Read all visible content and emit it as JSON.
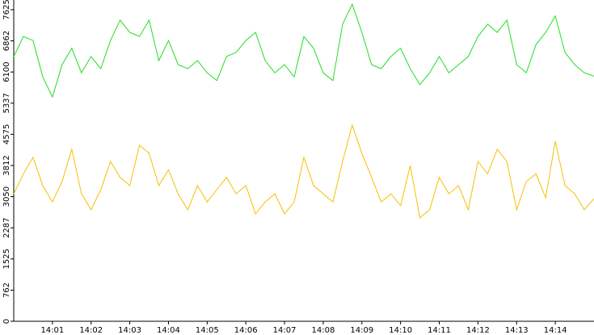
{
  "chart_data": {
    "type": "line",
    "x": [
      0,
      15,
      30,
      45,
      60,
      75,
      90,
      105,
      120,
      135,
      150,
      165,
      180,
      195,
      210,
      225,
      240,
      255,
      270,
      285,
      300,
      315,
      330,
      345,
      360,
      375,
      390,
      405,
      420,
      435,
      450,
      465,
      480,
      495,
      510,
      525,
      540,
      555,
      570,
      585,
      600,
      615,
      630,
      645,
      660,
      675,
      690,
      705,
      720,
      735,
      750,
      765,
      780,
      795,
      810,
      825,
      840,
      855,
      870,
      885,
      900
    ],
    "xlim": [
      0,
      900
    ],
    "xticks": [
      {
        "value": 60,
        "label": "14:01"
      },
      {
        "value": 120,
        "label": "14:02"
      },
      {
        "value": 180,
        "label": "14:03"
      },
      {
        "value": 240,
        "label": "14:04"
      },
      {
        "value": 300,
        "label": "14:05"
      },
      {
        "value": 360,
        "label": "14:06"
      },
      {
        "value": 420,
        "label": "14:07"
      },
      {
        "value": 480,
        "label": "14:08"
      },
      {
        "value": 540,
        "label": "14:09"
      },
      {
        "value": 600,
        "label": "14:10"
      },
      {
        "value": 660,
        "label": "14:11"
      },
      {
        "value": 720,
        "label": "14:12"
      },
      {
        "value": 780,
        "label": "14:13"
      },
      {
        "value": 840,
        "label": "14:14"
      }
    ],
    "ylim": [
      0,
      7862
    ],
    "yticks": [
      0,
      762,
      1525,
      2287,
      3050,
      3812,
      4575,
      5337,
      6100,
      6862,
      7625
    ],
    "series": [
      {
        "color": "#22dd22",
        "values": [
          6480,
          6970,
          6870,
          5980,
          5490,
          6280,
          6680,
          6080,
          6480,
          6180,
          6870,
          7370,
          7070,
          6970,
          7370,
          6380,
          6870,
          6280,
          6180,
          6380,
          6080,
          5890,
          6480,
          6580,
          6870,
          7070,
          6380,
          6080,
          6280,
          5980,
          6970,
          6680,
          6080,
          5890,
          7270,
          7760,
          7070,
          6280,
          6180,
          6480,
          6680,
          6180,
          5790,
          6080,
          6480,
          6080,
          6280,
          6480,
          6970,
          7270,
          7070,
          7370,
          6280,
          6080,
          6770,
          7070,
          7470,
          6580,
          6280,
          6080,
          6000
        ]
      },
      {
        "color": "#f5c000",
        "values": [
          3120,
          3610,
          4010,
          3320,
          2920,
          3420,
          4210,
          3120,
          2730,
          3220,
          3910,
          3520,
          3320,
          4310,
          4110,
          3320,
          3710,
          3120,
          2730,
          3320,
          2920,
          3220,
          3520,
          3120,
          3320,
          2630,
          2920,
          3120,
          2630,
          2920,
          4010,
          3320,
          3120,
          2920,
          3910,
          4800,
          4110,
          3520,
          2920,
          3120,
          2830,
          3810,
          2530,
          2730,
          3520,
          3120,
          3320,
          2730,
          3910,
          3610,
          4210,
          3910,
          2730,
          3420,
          3610,
          3020,
          4410,
          3320,
          3120,
          2730,
          3000
        ]
      }
    ]
  }
}
